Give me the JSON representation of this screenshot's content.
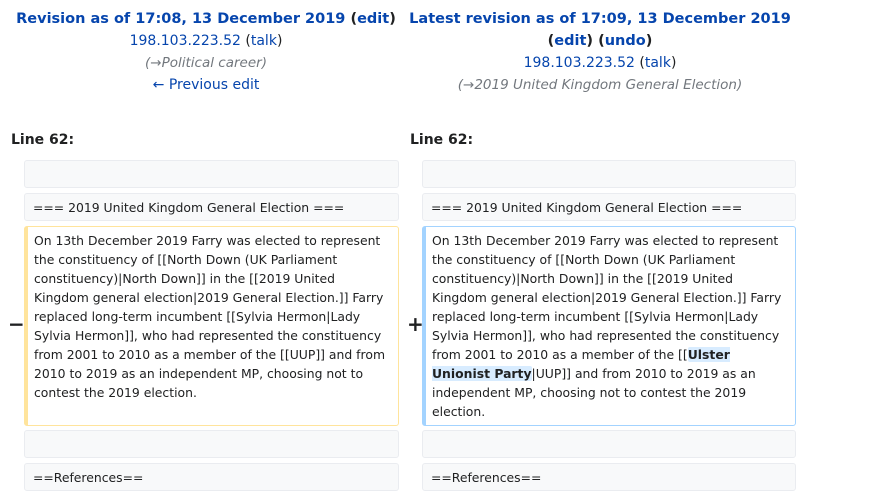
{
  "left": {
    "title_prefix": "Revision as of 17:08, 13 December 2019",
    "edit_link": "edit",
    "user": "198.103.223.52",
    "talk": "talk",
    "summary_arrow": "→",
    "summary_section": "Political career",
    "prev_edit": "← Previous edit",
    "line_no": "Line 62:"
  },
  "right": {
    "title_prefix": "Latest revision as of 17:09, 13 December 2019",
    "edit_link": "edit",
    "undo_link": "undo",
    "user": "198.103.223.52",
    "talk": "talk",
    "summary_arrow": "→",
    "summary_section": "2019 United Kingdom General Election",
    "line_no": "Line 62:"
  },
  "diff": {
    "heading_line": "=== 2019 United Kingdom General Election ===",
    "deleted_text": "On 13th December 2019 Farry was elected to represent the constituency of [[North Down (UK Parliament constituency)|North Down]] in the [[2019 United Kingdom general election|2019 General Election.]] Farry replaced long-term incumbent [[Sylvia Hermon|Lady Sylvia Hermon]], who had represented the constituency from 2001 to 2010 as a member of the [[UUP]] and from 2010 to 2019 as an independent MP, choosing not to contest the 2019 election.",
    "added_before": "On 13th December 2019 Farry was elected to represent the constituency of [[North Down (UK Parliament constituency)|North Down]] in the [[2019 United Kingdom general election|2019 General Election.]] Farry replaced long-term incumbent [[Sylvia Hermon|Lady Sylvia Hermon]], who had represented the constituency from 2001 to 2010 as a member of the [[",
    "added_highlight": "Ulster Unionist Party",
    "added_after": "|UUP]] and from 2010 to 2019 as an independent MP, choosing not to contest the 2019 election.",
    "references_line": "==References==",
    "minus_marker": "−",
    "plus_marker": "+"
  },
  "colors": {
    "link": "#0645ad",
    "deleted_border": "#ffe49c",
    "added_border": "#a3d3ff",
    "highlight": "#d8ecff",
    "context_bg": "#f8f9fa"
  }
}
